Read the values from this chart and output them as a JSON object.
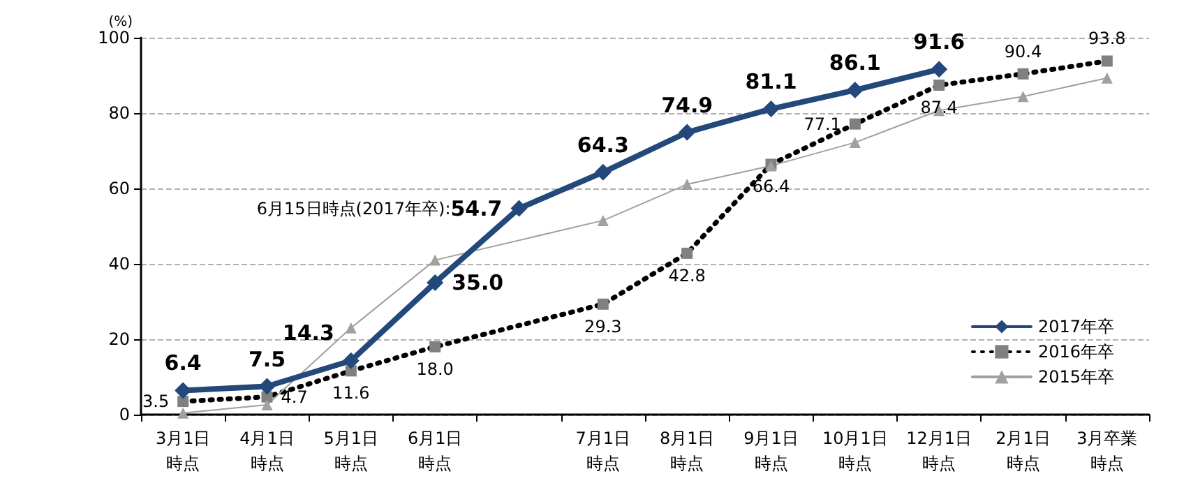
{
  "chart_data": {
    "type": "line",
    "ylabel": "(%)",
    "categories": [
      "3月1日時点",
      "4月1日時点",
      "5月1日時点",
      "6月1日時点",
      null,
      "7月1日時点",
      "8月1日時点",
      "9月1日時点",
      "10月1日時点",
      "12月1日時点",
      "2月1日時点",
      "3月卒業時点"
    ],
    "series": [
      {
        "name": "2017年卒",
        "color": "#23487a",
        "marker": "diamond",
        "line_style": "solid",
        "values": [
          6.4,
          7.5,
          14.3,
          35.0,
          54.7,
          64.3,
          74.9,
          81.1,
          86.1,
          91.6,
          null,
          null
        ],
        "value_labels": [
          "6.4",
          "7.5",
          "14.3",
          "35.0",
          "54.7",
          "64.3",
          "74.9",
          "81.1",
          "86.1",
          "91.6",
          null,
          null
        ]
      },
      {
        "name": "2016年卒",
        "color": "#808080",
        "marker": "square",
        "line_style": "dotted",
        "values": [
          3.5,
          4.7,
          11.6,
          18.0,
          null,
          29.3,
          42.8,
          66.4,
          77.1,
          87.4,
          90.4,
          93.8
        ],
        "value_labels": [
          "3.5",
          "4.7",
          "11.6",
          "18.0",
          null,
          "29.3",
          "42.8",
          "66.4",
          "77.1",
          "87.4",
          "90.4",
          "93.8"
        ]
      },
      {
        "name": "2015年卒",
        "color": "#a0a0a0",
        "marker": "triangle",
        "line_style": "solid",
        "values": [
          0.4,
          2.6,
          23.0,
          41.0,
          null,
          51.5,
          61.1,
          66.0,
          72.2,
          80.7,
          84.4,
          89.3
        ]
      }
    ],
    "annotations": [
      "6月15日時点(2017年卒):"
    ],
    "ylim": [
      0,
      100
    ],
    "yticks": [
      0,
      20,
      40,
      60,
      80,
      100
    ],
    "grid": "y",
    "legend": "bottom right"
  }
}
